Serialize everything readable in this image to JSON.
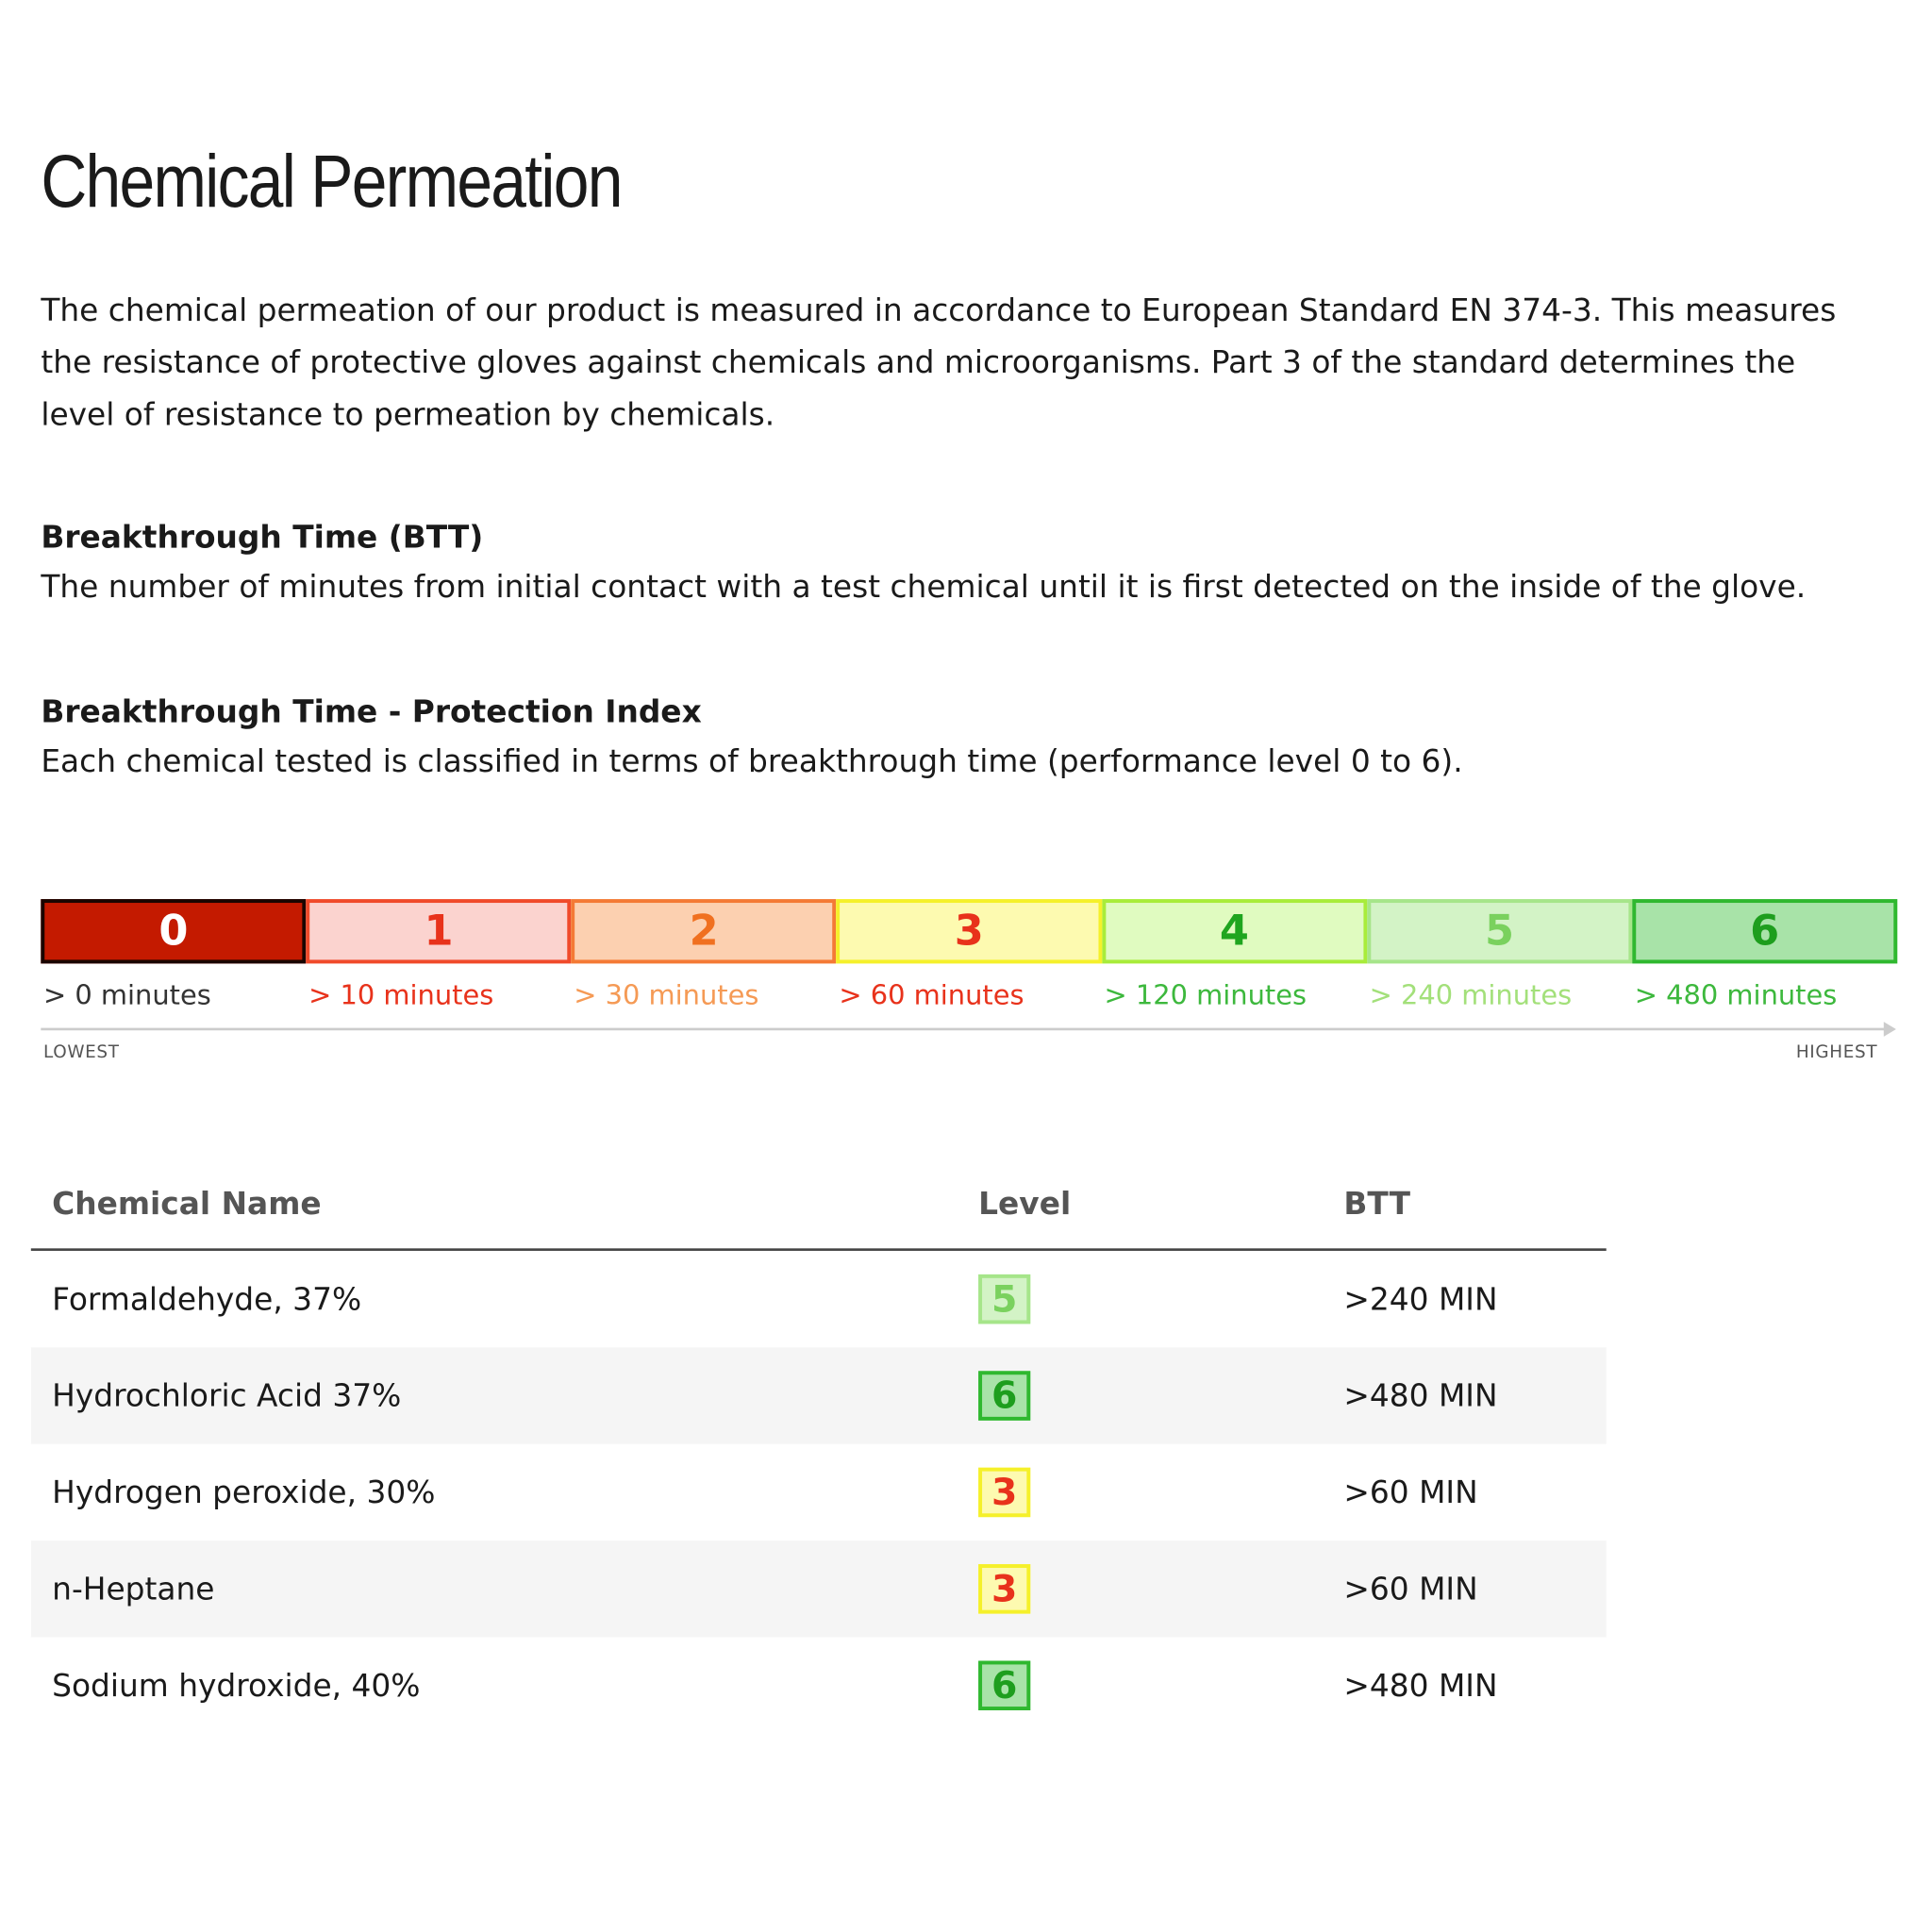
{
  "title": "Chemical Permeation",
  "intro": "The chemical permeation of our product is measured in accordance to European Standard EN 374-3. This measures the resistance of protective gloves against chemicals and microorganisms. Part 3 of the standard determines the level of resistance to permeation by chemicals.",
  "sections": [
    {
      "heading": "Breakthrough Time (BTT)",
      "text": "The number of minutes from initial contact with a test chemical until it is first detected on the inside of the glove."
    },
    {
      "heading": "Breakthrough Time - Protection Index",
      "text": "Each chemical tested is classified in terms of breakthrough time (performance level 0 to 6)."
    }
  ],
  "scale": {
    "levels": [
      {
        "label": "0",
        "time": "> 0 minutes"
      },
      {
        "label": "1",
        "time": "> 10 minutes"
      },
      {
        "label": "2",
        "time": "> 30 minutes"
      },
      {
        "label": "3",
        "time": "> 60 minutes"
      },
      {
        "label": "4",
        "time": "> 120 minutes"
      },
      {
        "label": "5",
        "time": "> 240 minutes"
      },
      {
        "label": "6",
        "time": "> 480 minutes"
      }
    ],
    "low": "LOWEST",
    "high": "HIGHEST"
  },
  "table": {
    "header": [
      "Chemical Name",
      "Level",
      "BTT"
    ],
    "rows": [
      [
        "Formaldehyde, 37%",
        "5",
        ">240 MIN"
      ],
      [
        "Hydrochloric Acid 37%",
        "6",
        ">480 MIN"
      ],
      [
        "Hydrogen peroxide, 30%",
        "3",
        ">60 MIN"
      ],
      [
        "n-Heptane",
        "3",
        ">60 MIN"
      ],
      [
        "Sodium hydroxide, 40%",
        "6",
        ">480 MIN"
      ]
    ]
  }
}
